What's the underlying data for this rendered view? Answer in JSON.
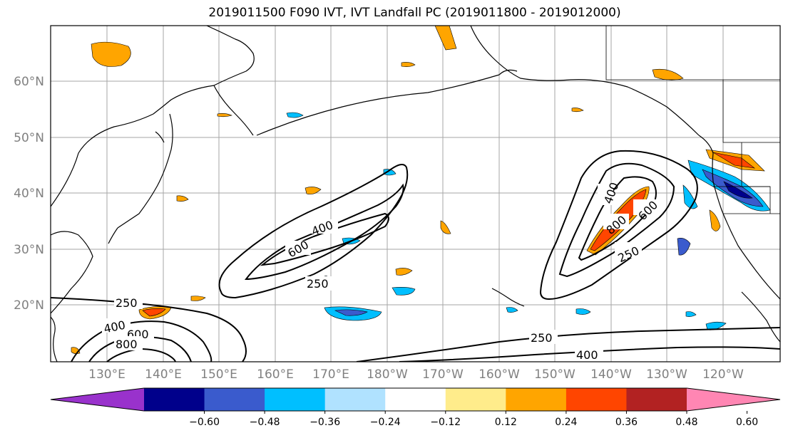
{
  "title": "2019011500 F090 IVT, IVT Landfall PC (2019011800 - 2019012000)",
  "lat_labels": [
    "60°N",
    "50°N",
    "40°N",
    "30°N",
    "20°N"
  ],
  "lon_labels": [
    "130°E",
    "140°E",
    "150°E",
    "160°E",
    "170°E",
    "180°W",
    "170°W",
    "160°W",
    "150°W",
    "140°W",
    "130°W",
    "120°W"
  ],
  "contour_labels": {
    "west": [
      "400",
      "600",
      "250"
    ],
    "east": [
      "400",
      "800",
      "600",
      "250"
    ],
    "south": [
      "250",
      "400",
      "600",
      "800",
      "250",
      "400"
    ]
  },
  "colorbar": {
    "colors": [
      "#9932CC",
      "#00008B",
      "#3A5BCD",
      "#00BFFF",
      "#B0E2FF",
      "#FFFFFF",
      "#FFEC8B",
      "#FFA500",
      "#FF4500",
      "#B22222",
      "#FF86B3"
    ],
    "tick_labels": [
      "−0.60",
      "−0.48",
      "−0.36",
      "−0.24",
      "−0.12",
      "0.12",
      "0.24",
      "0.36",
      "0.48",
      "0.60"
    ]
  }
}
